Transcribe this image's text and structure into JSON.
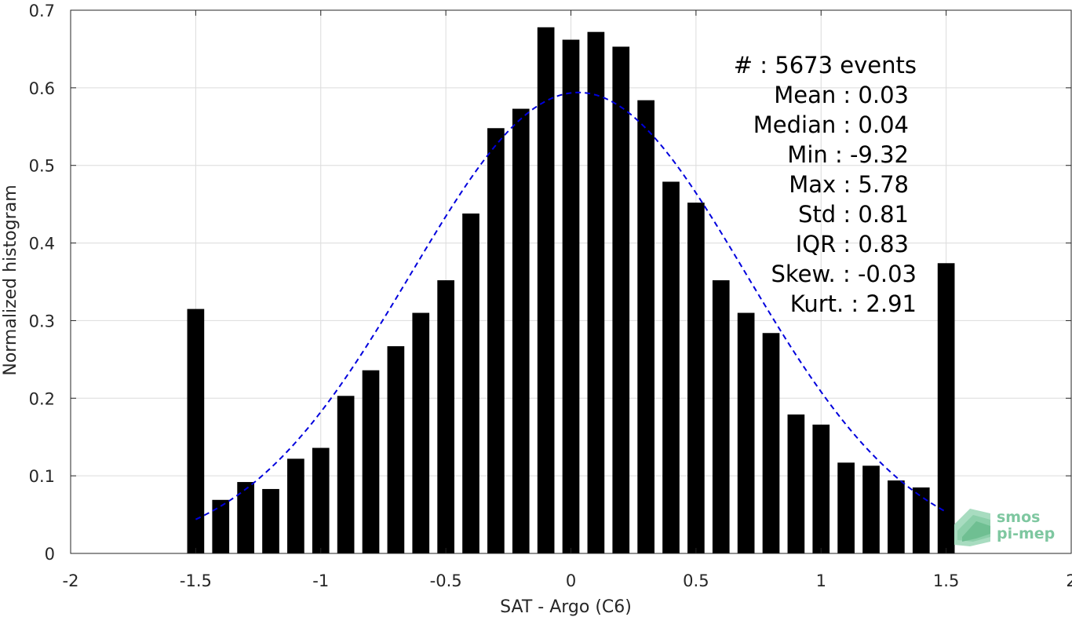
{
  "chart_data": {
    "type": "bar",
    "xlabel": "SAT - Argo (C6)",
    "ylabel": "Normalized histogram",
    "xlim": [
      -2,
      2
    ],
    "ylim": [
      0,
      0.7
    ],
    "xticks": [
      -2,
      -1.5,
      -1,
      -0.5,
      0,
      0.5,
      1,
      1.5,
      2
    ],
    "xtick_labels": [
      "-2",
      "-1.5",
      "-1",
      "-0.5",
      "0",
      "0.5",
      "1",
      "1.5",
      "2"
    ],
    "yticks": [
      0,
      0.1,
      0.2,
      0.3,
      0.4,
      0.5,
      0.6,
      0.7
    ],
    "ytick_labels": [
      "0",
      "0.1",
      "0.2",
      "0.3",
      "0.4",
      "0.5",
      "0.6",
      "0.7"
    ],
    "grid": true,
    "bar_color": "#000000",
    "fit_color": "#0000dd",
    "bins": [
      -1.5,
      -1.4,
      -1.3,
      -1.2,
      -1.1,
      -1.0,
      -0.9,
      -0.8,
      -0.7,
      -0.6,
      -0.5,
      -0.4,
      -0.3,
      -0.2,
      -0.1,
      0.0,
      0.1,
      0.2,
      0.3,
      0.4,
      0.5,
      0.6,
      0.7,
      0.8,
      0.9,
      1.0,
      1.1,
      1.2,
      1.3,
      1.4,
      1.5
    ],
    "values": [
      0.315,
      0.069,
      0.092,
      0.083,
      0.122,
      0.136,
      0.203,
      0.236,
      0.267,
      0.31,
      0.352,
      0.438,
      0.548,
      0.573,
      0.678,
      0.662,
      0.672,
      0.653,
      0.584,
      0.479,
      0.452,
      0.352,
      0.31,
      0.284,
      0.179,
      0.166,
      0.117,
      0.113,
      0.094,
      0.085,
      0.374
    ],
    "fit": {
      "type": "gaussian",
      "mean": 0.03,
      "std": 0.67,
      "peak": 0.594,
      "x_range": [
        -1.5,
        1.5
      ],
      "style": "dashed"
    },
    "stats": [
      {
        "label": "#  ",
        "sep": ": ",
        "value": "5673 events"
      },
      {
        "label": "Mean ",
        "sep": ": ",
        "value": "0.03"
      },
      {
        "label": "Median ",
        "sep": ": ",
        "value": "0.04"
      },
      {
        "label": "Min ",
        "sep": ": ",
        "value": "-9.32"
      },
      {
        "label": "Max ",
        "sep": ": ",
        "value": "5.78"
      },
      {
        "label": "Std ",
        "sep": ": ",
        "value": "0.81"
      },
      {
        "label": "IQR ",
        "sep": ": ",
        "value": "0.83"
      },
      {
        "label": "Skew. ",
        "sep": ": ",
        "value": "-0.03"
      },
      {
        "label": "Kurt. ",
        "sep": ": ",
        "value": "2.91"
      }
    ]
  },
  "logo": {
    "line1": "smos",
    "line2": "pi-mep"
  }
}
